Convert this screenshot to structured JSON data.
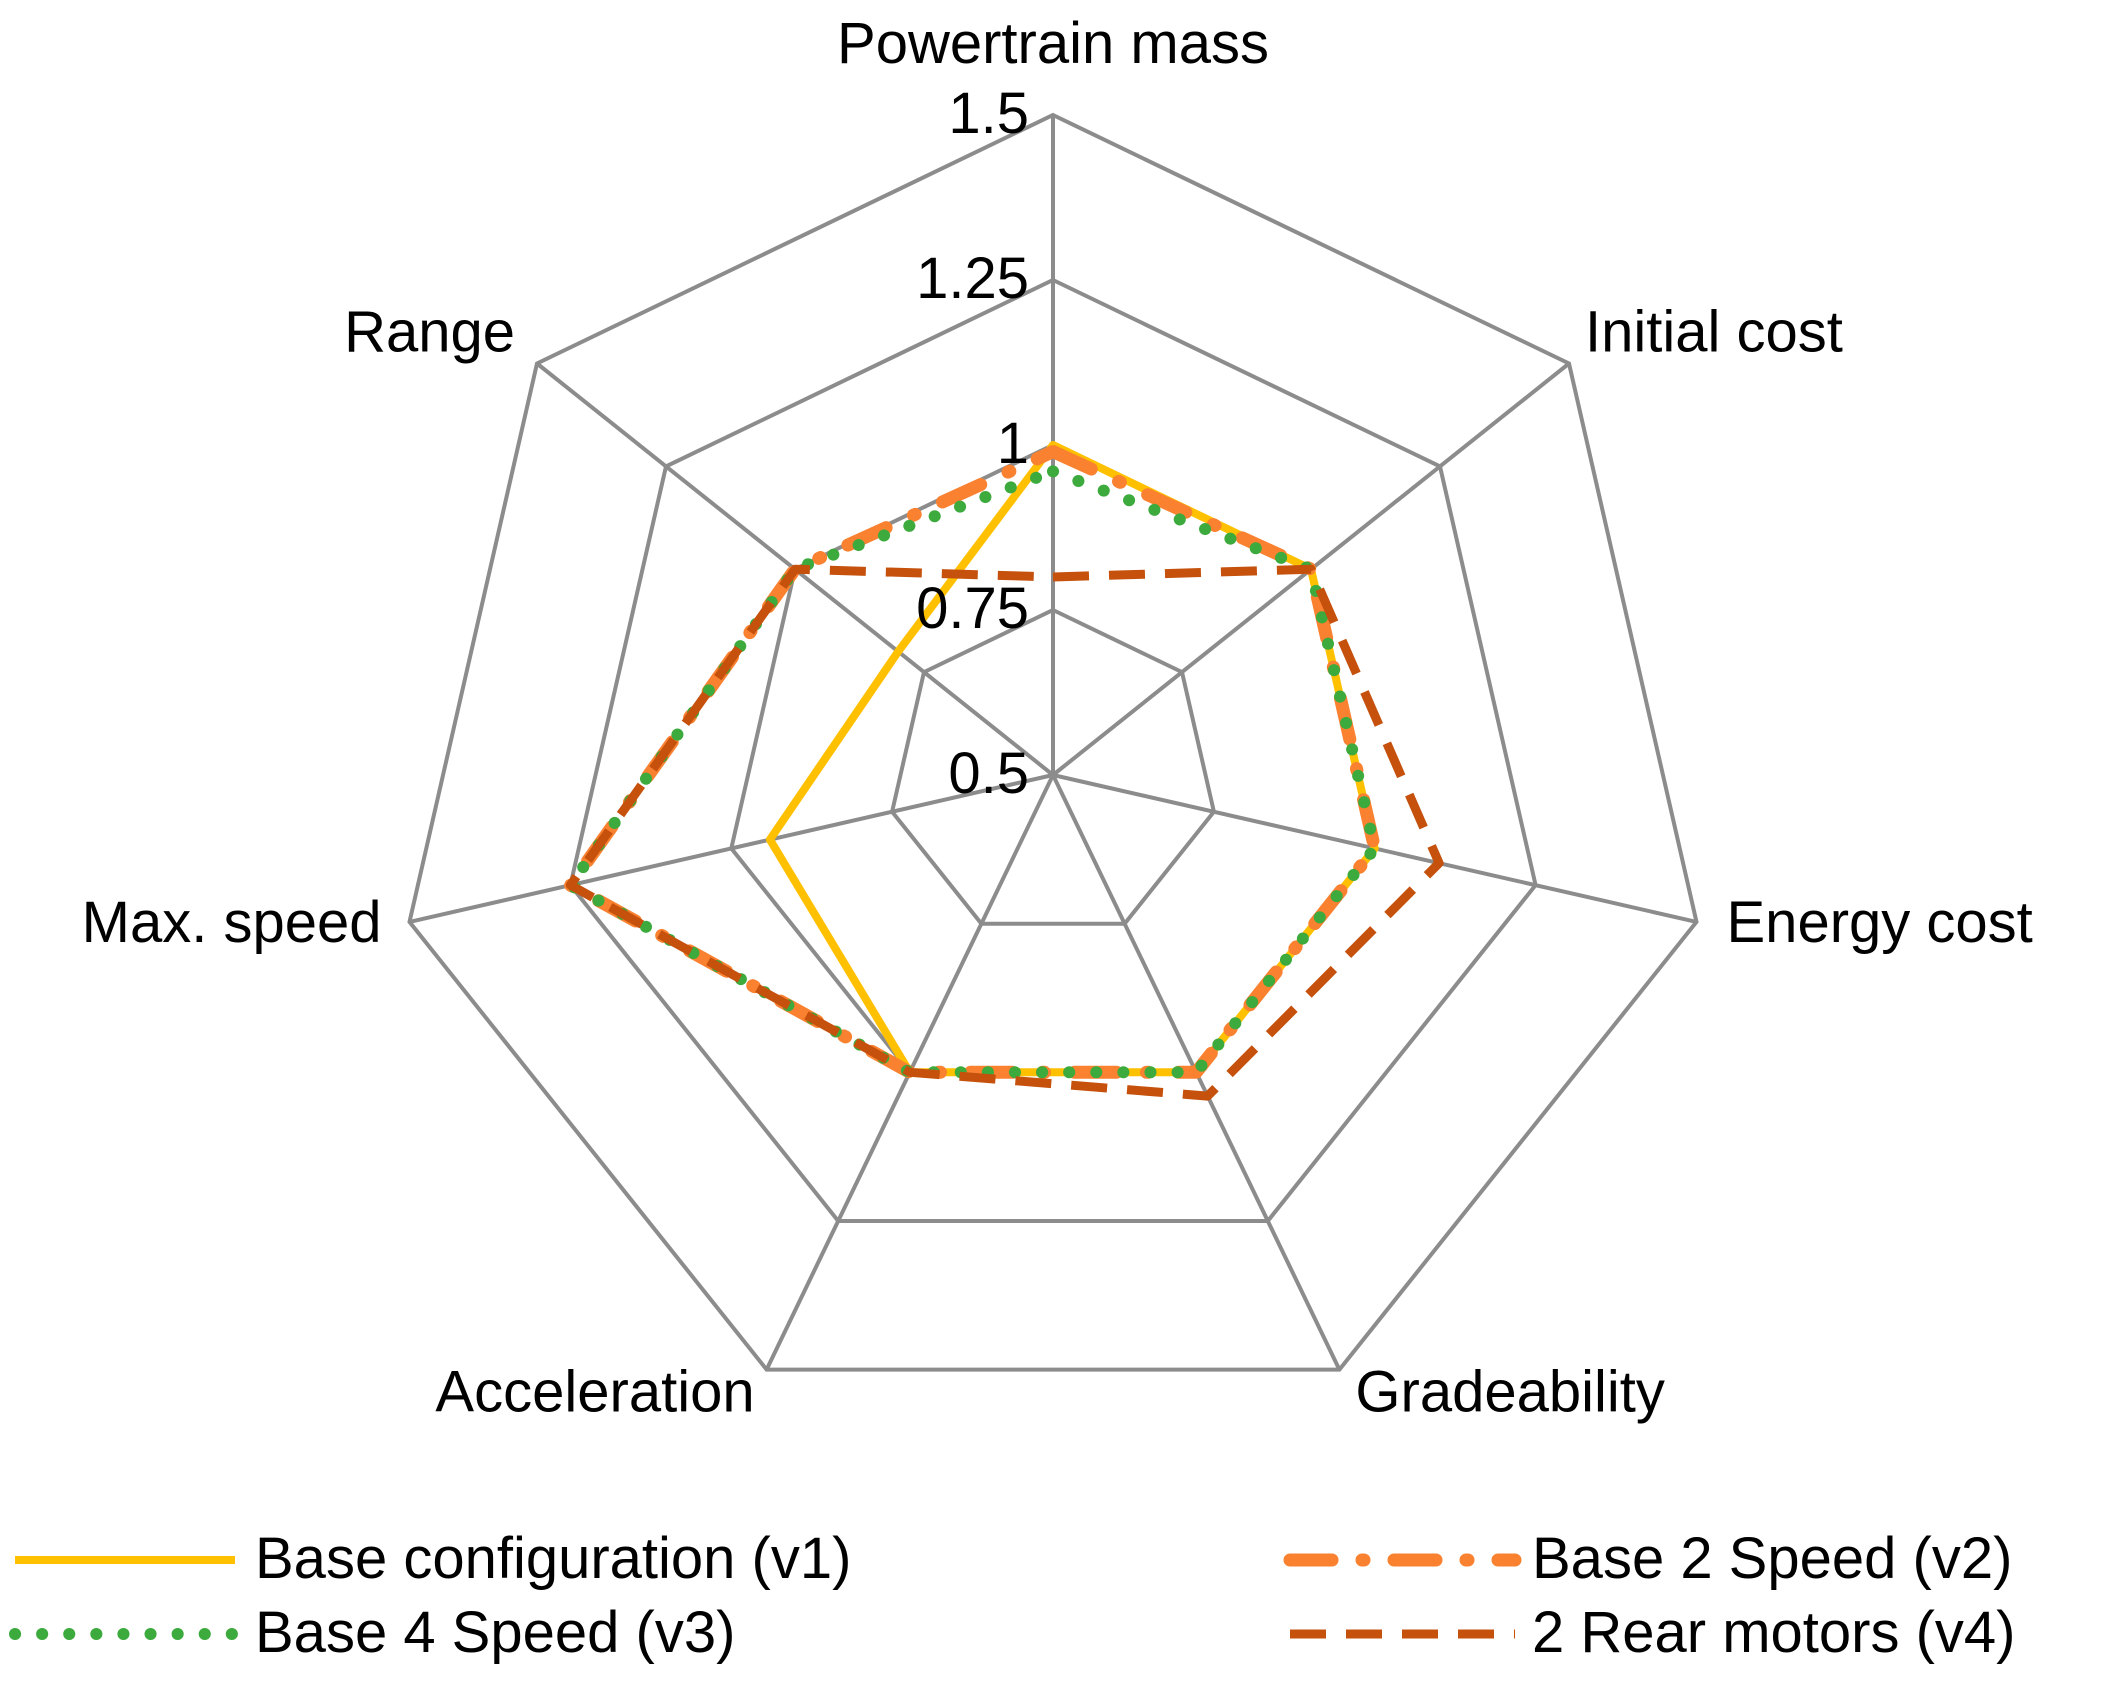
{
  "chart_data": {
    "type": "radar",
    "axes": [
      "Powertrain mass",
      "Initial cost",
      "Energy cost",
      "Gradeability",
      "Acceleration",
      "Max. speed",
      "Range"
    ],
    "rmin": 0.5,
    "rmax": 1.5,
    "ticks": [
      0.5,
      0.75,
      1,
      1.25,
      1.5
    ],
    "tick_labels": [
      "0.5",
      "0.75",
      "1",
      "1.25",
      "1.5"
    ],
    "series": [
      {
        "name": "Base configuration (v1)",
        "values": [
          1.0,
          1.0,
          1.0,
          1.0,
          1.0,
          0.94,
          0.8
        ],
        "color": "#FFC000",
        "style": "solid"
      },
      {
        "name": "Base 2 Speed (v2)",
        "values": [
          0.99,
          1.0,
          1.0,
          1.0,
          1.0,
          1.25,
          1.0
        ],
        "color": "#F98130",
        "style": "dashdot"
      },
      {
        "name": "Base 4 Speed (v3)",
        "values": [
          0.96,
          1.0,
          1.0,
          1.0,
          1.0,
          1.25,
          1.0
        ],
        "color": "#3CAA3C",
        "style": "dotted"
      },
      {
        "name": "2 Rear motors (v4)",
        "values": [
          0.8,
          1.0,
          1.1,
          1.04,
          1.0,
          1.25,
          1.0
        ],
        "color": "#C5510C",
        "style": "dashed"
      }
    ],
    "legend": {
      "placement": "bottom",
      "order": [
        "Base configuration (v1)",
        "Base 2 Speed (v2)",
        "Base 4 Speed (v3)",
        "2 Rear motors (v4)"
      ]
    },
    "grid_color": "#8C8C8C"
  }
}
